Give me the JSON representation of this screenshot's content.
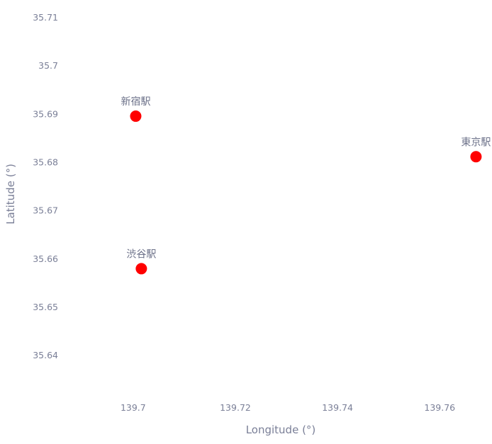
{
  "chart_data": {
    "type": "scatter",
    "title": "",
    "xlabel": "Longitude (°)",
    "ylabel": "Latitude (°)",
    "xlim": [
      139.6867,
      139.7694
    ],
    "ylim": [
      35.6315,
      35.7125
    ],
    "x_ticks": [
      "139.7",
      "139.72",
      "139.74",
      "139.76"
    ],
    "y_ticks": [
      "35.64",
      "35.65",
      "35.66",
      "35.67",
      "35.68",
      "35.69",
      "35.7",
      "35.71"
    ],
    "grid": false,
    "marker_color": "#ff0000",
    "points": [
      {
        "label": "新宿駅",
        "x": 139.7005,
        "y": 35.6896
      },
      {
        "label": "渋谷駅",
        "x": 139.7016,
        "y": 35.658
      },
      {
        "label": "東京駅",
        "x": 139.7671,
        "y": 35.6812
      }
    ]
  }
}
